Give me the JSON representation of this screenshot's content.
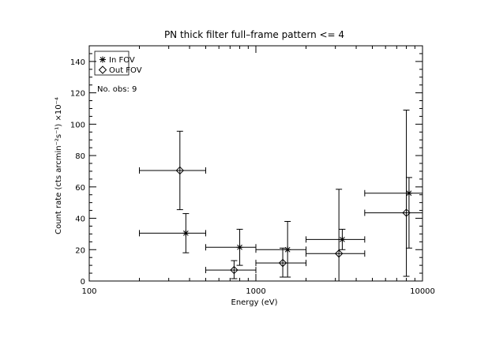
{
  "chart_data": {
    "type": "scatter",
    "title": "PN thick filter full–frame pattern <= 4",
    "xlabel": "Energy (eV)",
    "ylabel": "Count rate (cts arcmin⁻²s⁻¹) ×10⁻⁴",
    "xscale": "log",
    "xlim": [
      100,
      10000
    ],
    "ylim": [
      0,
      150
    ],
    "x_ticks": [
      100,
      1000,
      10000
    ],
    "x_tick_labels": [
      "100",
      "1000",
      "10000"
    ],
    "y_ticks": [
      0,
      20,
      40,
      60,
      80,
      100,
      120,
      140
    ],
    "y_tick_labels": [
      "0",
      "20",
      "40",
      "60",
      "80",
      "100",
      "120",
      "140"
    ],
    "grid": false,
    "legend_position": "top-left",
    "annotation": "No. obs: 9",
    "series": [
      {
        "name": "In FOV",
        "marker": "asterisk",
        "points": [
          {
            "x": 380,
            "y": 30.5,
            "xlo": 200,
            "xhi": 500,
            "ylo": 18,
            "yhi": 43
          },
          {
            "x": 800,
            "y": 21.5,
            "xlo": 500,
            "xhi": 1000,
            "ylo": 10,
            "yhi": 33
          },
          {
            "x": 1550,
            "y": 20,
            "xlo": 1000,
            "xhi": 2000,
            "ylo": 2.5,
            "yhi": 38
          },
          {
            "x": 3300,
            "y": 26.5,
            "xlo": 2000,
            "xhi": 4500,
            "ylo": 20,
            "yhi": 33
          },
          {
            "x": 8300,
            "y": 56,
            "xlo": 4500,
            "xhi": 10000,
            "ylo": 21,
            "yhi": 66
          }
        ]
      },
      {
        "name": "Out FOV",
        "marker": "diamond",
        "points": [
          {
            "x": 350,
            "y": 70.5,
            "xlo": 200,
            "xhi": 500,
            "ylo": 45.5,
            "yhi": 95.5
          },
          {
            "x": 740,
            "y": 7,
            "xlo": 500,
            "xhi": 1000,
            "ylo": 1.5,
            "yhi": 13
          },
          {
            "x": 1450,
            "y": 11.5,
            "xlo": 1000,
            "xhi": 2000,
            "ylo": 2.5,
            "yhi": 21
          },
          {
            "x": 3150,
            "y": 17.5,
            "xlo": 2000,
            "xhi": 4500,
            "ylo": 0,
            "yhi": 58.5
          },
          {
            "x": 8000,
            "y": 43.5,
            "xlo": 4500,
            "xhi": 10000,
            "ylo": 3,
            "yhi": 109
          }
        ]
      }
    ]
  }
}
